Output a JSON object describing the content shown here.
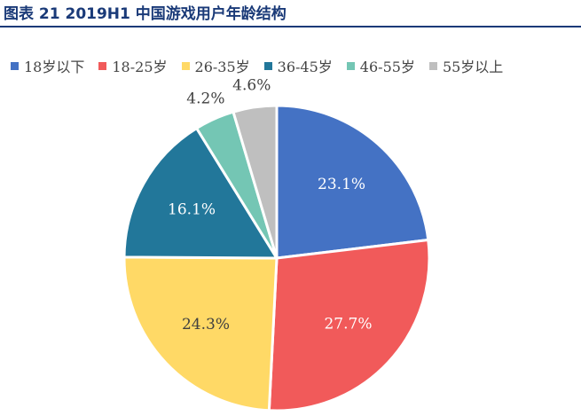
{
  "figure": {
    "title": "图表 21 2019H1 中国游戏用户年龄结构"
  },
  "chart_data": {
    "type": "pie",
    "title": "",
    "categories": [
      "18岁以下",
      "18-25岁",
      "26-35岁",
      "36-45岁",
      "46-55岁",
      "55岁以上"
    ],
    "values": [
      23.1,
      27.7,
      24.3,
      16.1,
      4.2,
      4.6
    ],
    "value_labels": [
      "23.1%",
      "27.7%",
      "24.3%",
      "16.1%",
      "4.2%",
      "4.6%"
    ],
    "colors": [
      "#4472C4",
      "#F15A5A",
      "#FFD966",
      "#22779A",
      "#74C6B4",
      "#BFBFBF"
    ],
    "label_colors": [
      "#ffffff",
      "#ffffff",
      "#404040",
      "#ffffff",
      "#404040",
      "#404040"
    ],
    "start_angle_deg": 0,
    "direction": "clockwise",
    "legend_position": "top"
  }
}
